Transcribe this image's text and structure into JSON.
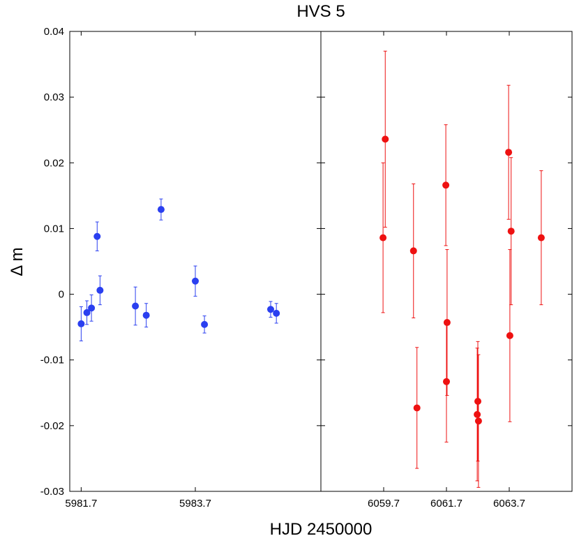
{
  "chart_data": {
    "type": "scatter",
    "title": "HVS 5",
    "xlabel": "HJD 2450000",
    "ylabel": "Δ m",
    "ylim": [
      -0.03,
      0.04
    ],
    "yticks": [
      0.04,
      0.03,
      0.02,
      0.01,
      0,
      -0.01,
      -0.02,
      -0.03
    ],
    "ytick_labels": [
      "0.04",
      "0.03",
      "0.02",
      "0.01",
      "0",
      "-0.01",
      "-0.02",
      "-0.03"
    ],
    "grid": false,
    "panels": [
      {
        "xlim": [
          5981.5,
          5985.9
        ],
        "xticks": [
          5981.7,
          5983.7
        ],
        "xtick_labels": [
          "5981.7",
          "5983.7"
        ],
        "color": "#2a3ff0",
        "points": [
          {
            "x": 5981.7,
            "y": -0.0045,
            "err": 0.0026
          },
          {
            "x": 5981.8,
            "y": -0.0028,
            "err": 0.0018
          },
          {
            "x": 5981.88,
            "y": -0.0021,
            "err": 0.002
          },
          {
            "x": 5981.98,
            "y": 0.0088,
            "err": 0.0022
          },
          {
            "x": 5982.03,
            "y": 0.0006,
            "err": 0.0022
          },
          {
            "x": 5982.65,
            "y": -0.0018,
            "err": 0.0029
          },
          {
            "x": 5982.84,
            "y": -0.0032,
            "err": 0.0018
          },
          {
            "x": 5983.1,
            "y": 0.0129,
            "err": 0.0016
          },
          {
            "x": 5983.7,
            "y": 0.002,
            "err": 0.0023
          },
          {
            "x": 5983.86,
            "y": -0.0046,
            "err": 0.0013
          },
          {
            "x": 5985.02,
            "y": -0.0023,
            "err": 0.0012
          },
          {
            "x": 5985.12,
            "y": -0.0029,
            "err": 0.0015
          }
        ]
      },
      {
        "xlim": [
          5057.7,
          6065.7
        ],
        "xticks": [
          6059.7,
          6061.7,
          6063.7
        ],
        "xtick_labels": [
          "6059.7",
          "6061.7",
          "6063.7"
        ],
        "color": "#ee1111",
        "points": [
          {
            "x": 6059.68,
            "y": 0.0086,
            "err": 0.0114
          },
          {
            "x": 6059.75,
            "y": 0.0236,
            "err": 0.0134
          },
          {
            "x": 6060.65,
            "y": 0.0066,
            "err": 0.0102
          },
          {
            "x": 6060.76,
            "y": -0.0173,
            "err": 0.0092
          },
          {
            "x": 6061.68,
            "y": 0.0166,
            "err": 0.0092
          },
          {
            "x": 6061.72,
            "y": -0.0043,
            "err": 0.0111
          },
          {
            "x": 6061.7,
            "y": -0.0133,
            "err": 0.0092
          },
          {
            "x": 6062.7,
            "y": -0.0163,
            "err": 0.0091
          },
          {
            "x": 6062.68,
            "y": -0.0183,
            "err": 0.0101
          },
          {
            "x": 6062.72,
            "y": -0.0193,
            "err": 0.0101
          },
          {
            "x": 6063.68,
            "y": 0.0216,
            "err": 0.0102
          },
          {
            "x": 6063.76,
            "y": 0.0096,
            "err": 0.0112
          },
          {
            "x": 6063.72,
            "y": -0.0063,
            "err": 0.0131
          },
          {
            "x": 6064.72,
            "y": 0.0086,
            "err": 0.0102
          }
        ]
      }
    ]
  }
}
